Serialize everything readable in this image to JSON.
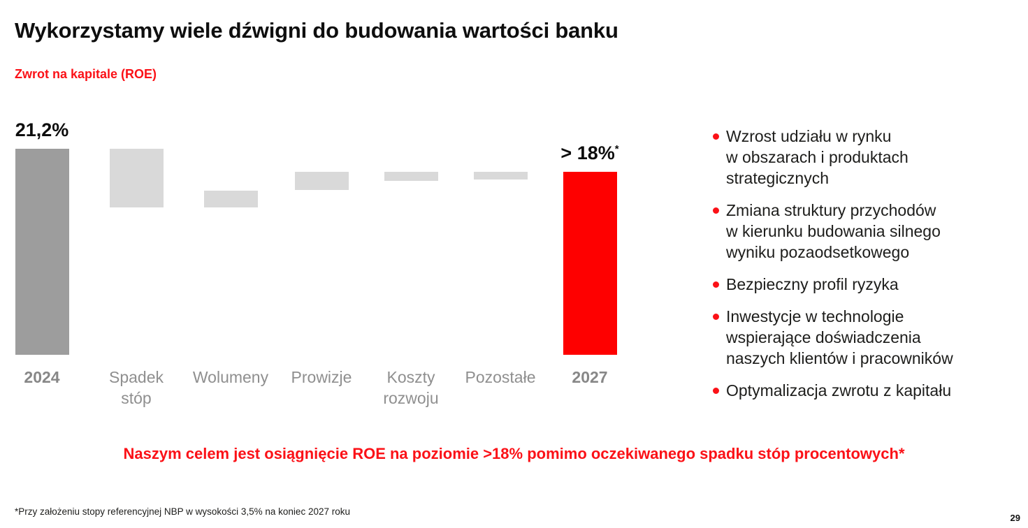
{
  "slide": {
    "title": "Wykorzystamy wiele dźwigni do budowania wartości banku",
    "subtitle": "Zwrot na kapitale (ROE)",
    "goal_statement": "Naszym celem jest osiągnięcie ROE na poziomie >18% pomimo oczekiwanego spadku stóp procentowych*",
    "footnote": "*Przy założeniu stopy referencyjnej NBP w wysokości 3,5% na koniec 2027 roku",
    "page_number": "29"
  },
  "colors": {
    "accent_red_text": "#fb1117",
    "bar_red": "#fe0000",
    "bar_dark_gray": "#9d9d9d",
    "bar_light_gray": "#d9d9d9",
    "axis_label_gray": "#8f8f8f",
    "body_text": "#1d1d1b"
  },
  "chart_data": {
    "type": "bar",
    "subtype": "waterfall",
    "title": "Zwrot na kapitale (ROE)",
    "unit": "%",
    "ylim": [
      0,
      21.2
    ],
    "grid": false,
    "legend": false,
    "columns": [
      {
        "label": [
          "2024"
        ],
        "emphasis": true,
        "value_label": "21,2%",
        "value_sup": "",
        "from": 0,
        "to": 21.2,
        "color": "#9d9d9d"
      },
      {
        "label": [
          "Spadek",
          "stóp"
        ],
        "emphasis": false,
        "from": 15.2,
        "to": 21.2,
        "color": "#d9d9d9"
      },
      {
        "label": [
          "Wolumeny"
        ],
        "emphasis": false,
        "from": 15.2,
        "to": 16.9,
        "color": "#d9d9d9"
      },
      {
        "label": [
          "Prowizje"
        ],
        "emphasis": false,
        "from": 16.9,
        "to": 18.8,
        "color": "#d9d9d9"
      },
      {
        "label": [
          "Koszty",
          "rozwoju"
        ],
        "emphasis": false,
        "from": 17.9,
        "to": 18.8,
        "color": "#d9d9d9"
      },
      {
        "label": [
          "Pozostałe"
        ],
        "emphasis": false,
        "from": 18.0,
        "to": 18.8,
        "color": "#d9d9d9"
      },
      {
        "label": [
          "2027"
        ],
        "emphasis": true,
        "value_label": "> 18%",
        "value_sup": "*",
        "from": 0,
        "to": 18.8,
        "color": "#fe0000"
      }
    ]
  },
  "bullets": {
    "items": [
      {
        "lines": [
          "Wzrost udziału w rynku",
          "w obszarach i produktach",
          "strategicznych"
        ]
      },
      {
        "lines": [
          "Zmiana struktury przychodów",
          "w kierunku budowania silnego",
          "wyniku pozaodsetkowego"
        ]
      },
      {
        "lines": [
          "Bezpieczny profil ryzyka"
        ]
      },
      {
        "lines": [
          "Inwestycje w technologie",
          "wspierające doświadczenia",
          "naszych klientów i pracowników"
        ]
      },
      {
        "lines": [
          "Optymalizacja zwrotu z kapitału"
        ]
      }
    ]
  }
}
